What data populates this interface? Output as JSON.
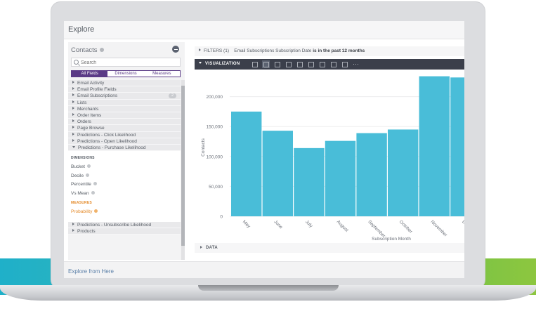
{
  "app": {
    "title": "Explore"
  },
  "sidebar": {
    "model": "Contacts",
    "search_placeholder": "Search",
    "tabs": [
      {
        "label": "All Fields",
        "active": true
      },
      {
        "label": "Dimensions",
        "active": false
      },
      {
        "label": "Measures",
        "active": false
      }
    ],
    "views": [
      {
        "label": "Email Activity"
      },
      {
        "label": "Email Profile Fields"
      },
      {
        "label": "Email Subscriptions",
        "count": "2"
      },
      {
        "label": "Lists"
      },
      {
        "label": "Merchants"
      },
      {
        "label": "Order Items"
      },
      {
        "label": "Orders"
      },
      {
        "label": "Page Browse"
      },
      {
        "label": "Predictions - Click Likelihood"
      },
      {
        "label": "Predictions - Open Likelihood"
      },
      {
        "label": "Predictions - Purchase Likelihood",
        "expanded": true
      }
    ],
    "expanded_view": {
      "dimensions_heading": "DIMENSIONS",
      "dimensions": [
        "Bucket",
        "Decile",
        "Percentile",
        "Vs Mean"
      ],
      "measures_heading": "MEASURES",
      "measures": [
        "Probability"
      ]
    },
    "views_after": [
      {
        "label": "Predictions - Unsubscribe Likelihood"
      },
      {
        "label": "Products"
      }
    ],
    "footer_link": "Explore from Here"
  },
  "filters": {
    "label": "FILTERS (1)",
    "text": "Email Subscriptions Subscription Date",
    "condition": "is in the past 12 months"
  },
  "visualization": {
    "label": "VISUALIZATION",
    "icons": [
      "table-icon",
      "column-chart-icon",
      "bar-chart-icon",
      "scatter-chart-icon",
      "line-chart-icon",
      "area-chart-icon",
      "pie-chart-icon",
      "map-icon",
      "single-value-icon",
      "more-icon"
    ]
  },
  "data_section": {
    "label": "DATA"
  },
  "colors": {
    "bar": "#49bdd8",
    "accent": "#5a3a86",
    "measure": "#e48b2b"
  },
  "chart_data": {
    "type": "bar",
    "xlabel": "Subscription Month",
    "ylabel": "Contacts",
    "ylim": [
      0,
      230000
    ],
    "yticks": [
      0,
      50000,
      100000,
      150000,
      200000
    ],
    "ytick_labels": [
      "0",
      "50,000",
      "100,000",
      "150,000",
      "200,000"
    ],
    "categories": [
      "May",
      "June",
      "July",
      "August",
      "September",
      "October",
      "November",
      "December"
    ],
    "values": [
      175000,
      143000,
      114000,
      126000,
      139000,
      145000,
      234000,
      232000
    ],
    "grid": true,
    "legend": "none"
  }
}
